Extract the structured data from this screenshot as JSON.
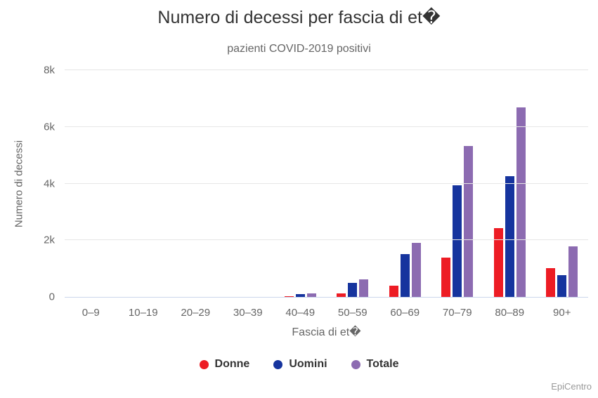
{
  "header": {
    "title": "Numero di decessi per fascia di et�",
    "subtitle": "pazienti COVID-2019 positivi"
  },
  "chart_data": {
    "type": "bar",
    "title": "Numero di decessi per fascia di et�",
    "subtitle": "pazienti COVID-2019 positivi",
    "xlabel": "Fascia di et�",
    "ylabel": "Numero di decessi",
    "ylim": [
      0,
      8000
    ],
    "ytick_values": [
      0,
      2000,
      4000,
      6000,
      8000
    ],
    "ytick_labels": [
      "0",
      "2k",
      "4k",
      "6k",
      "8k"
    ],
    "grid": true,
    "legend_position": "bottom",
    "categories": [
      "0–9",
      "10–19",
      "20–29",
      "30–39",
      "40–49",
      "50–59",
      "60–69",
      "70–79",
      "80–89",
      "90+"
    ],
    "series": [
      {
        "name": "Donne",
        "color": "#ed1c24",
        "values": [
          0,
          0,
          0,
          0,
          25,
          120,
          400,
          1380,
          2440,
          1020
        ]
      },
      {
        "name": "Uomini",
        "color": "#16349e",
        "values": [
          0,
          0,
          0,
          0,
          100,
          500,
          1500,
          3950,
          4250,
          760
        ]
      },
      {
        "name": "Totale",
        "color": "#8c6bb1",
        "values": [
          0,
          0,
          0,
          0,
          125,
          620,
          1900,
          5330,
          6690,
          1780
        ]
      }
    ]
  },
  "credits": {
    "label": "EpiCentro"
  },
  "colors": {
    "background": "#ffffff",
    "title": "#333333",
    "subtitle": "#666666",
    "axis_label": "#666666",
    "gridline": "#e6e6e6",
    "axis_line": "#ccd6eb",
    "legend_text": "#333333",
    "credits_text": "#999999"
  }
}
